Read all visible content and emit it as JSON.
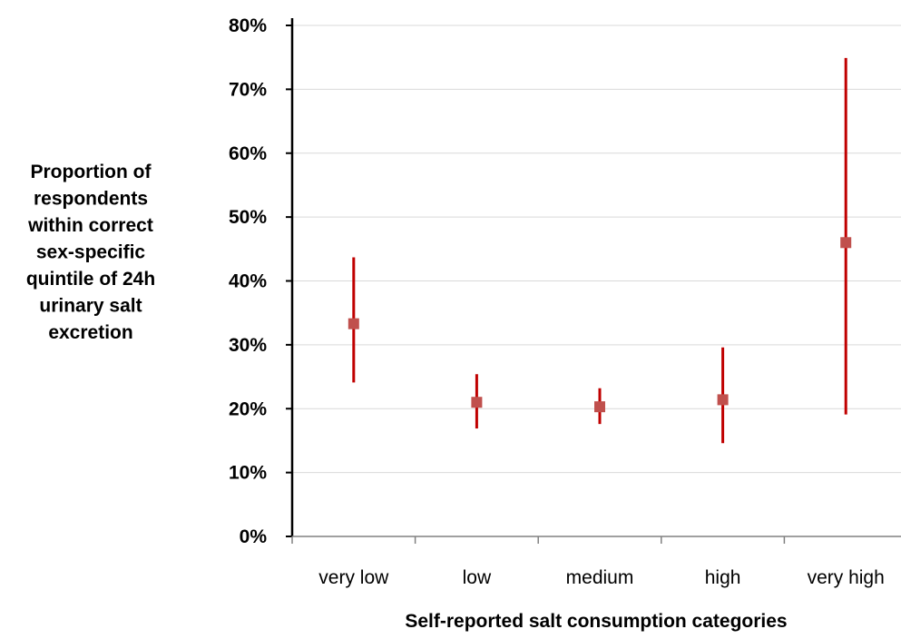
{
  "chart_data": {
    "type": "scatter",
    "subtype": "point-with-error-bars",
    "categories": [
      "very low",
      "low",
      "medium",
      "high",
      "very high"
    ],
    "series": [
      {
        "values": [
          33.3,
          21.0,
          20.3,
          21.4,
          46.0
        ],
        "lower": [
          24.1,
          16.9,
          17.6,
          14.6,
          19.1
        ],
        "upper": [
          43.7,
          25.4,
          23.2,
          29.6,
          74.9
        ]
      }
    ],
    "xlabel": "Self-reported salt consumption categories",
    "ylabel_lines": [
      "Proportion of",
      "respondents",
      "within correct",
      "sex-specific",
      "quintile of 24h",
      "urinary salt",
      "excretion"
    ],
    "ylim": [
      0,
      80
    ],
    "yticks": [
      0,
      10,
      20,
      30,
      40,
      50,
      60,
      70,
      80
    ],
    "ytick_labels": [
      "0%",
      "10%",
      "20%",
      "30%",
      "40%",
      "50%",
      "60%",
      "70%",
      "80%"
    ],
    "grid": true,
    "legend": "none",
    "colors": {
      "marker": "#c0504d",
      "errorbar": "#c00000",
      "grid": "#d9d9d9",
      "axis": "#000000"
    }
  }
}
